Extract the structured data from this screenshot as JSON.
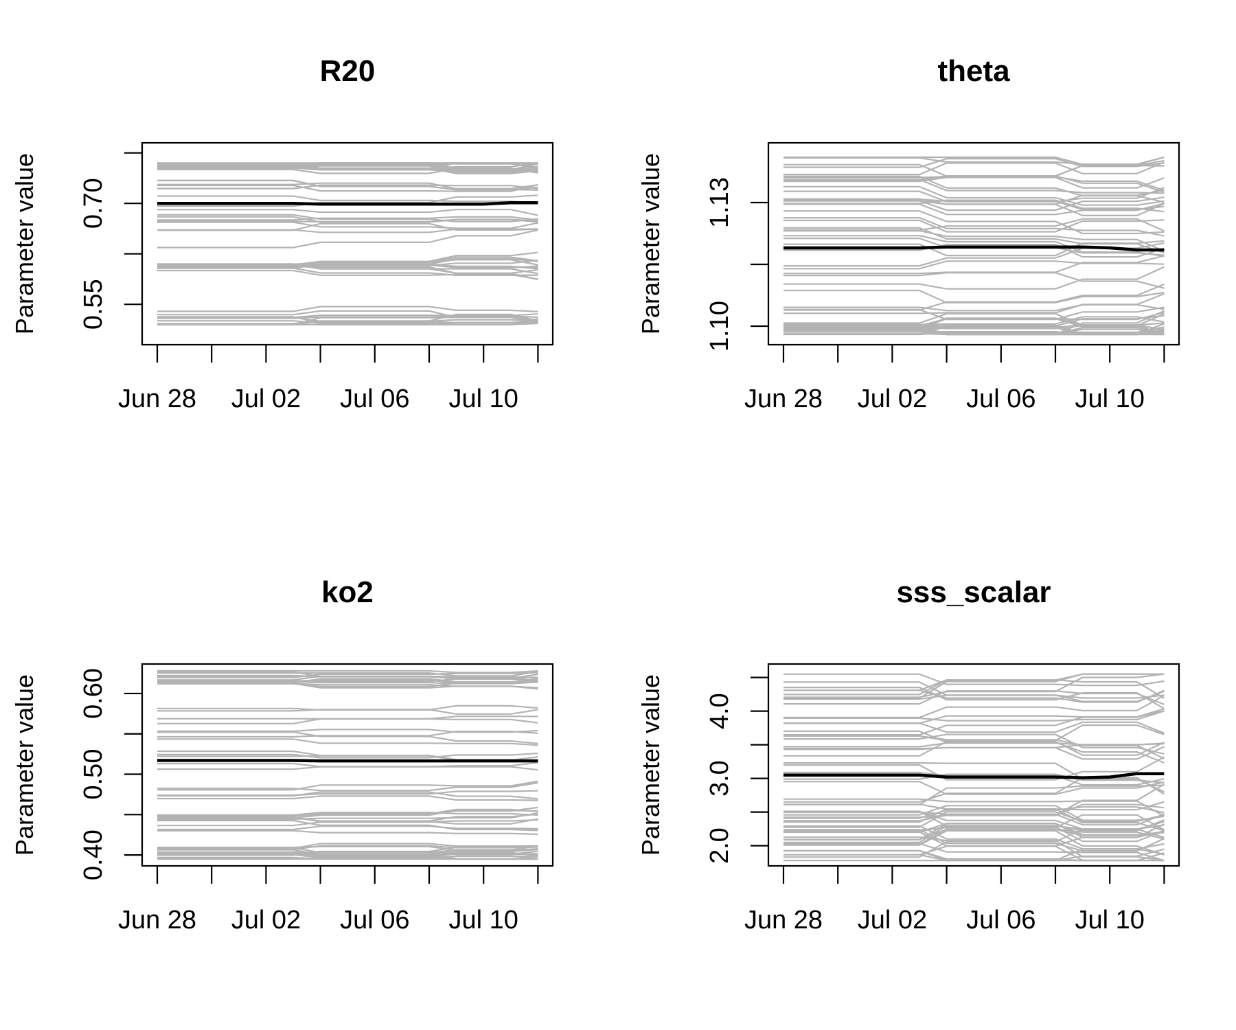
{
  "chart_data": [
    {
      "type": "line",
      "title": "R20",
      "xlabel": "",
      "ylabel": "Parameter value",
      "x": [
        "Jun 28",
        "Jun 29",
        "Jun 30",
        "Jul 01",
        "Jul 02",
        "Jul 03",
        "Jul 04",
        "Jul 05",
        "Jul 06",
        "Jul 07",
        "Jul 08",
        "Jul 09",
        "Jul 10",
        "Jul 11",
        "Jul 12"
      ],
      "x_ticks": [
        "Jun 28",
        "Jul 02",
        "Jul 06",
        "Jul 10"
      ],
      "y_ticks": [
        "0.55",
        "0.70"
      ],
      "ylim": [
        0.49,
        0.79
      ],
      "update_days": [
        "Jul 03",
        "Jul 04",
        "Jul 08",
        "Jul 09",
        "Jul 11",
        "Jul 12"
      ],
      "ensemble": {
        "color": "#b3b3b3",
        "members": 60,
        "low": 0.52,
        "high": 0.76,
        "clusters": [
          [
            0.52,
            0.54
          ],
          [
            0.6,
            0.61
          ],
          [
            0.63,
            0.74
          ],
          [
            0.75,
            0.76
          ]
        ],
        "spread": 0.01,
        "seed": 11
      },
      "mean": {
        "color": "#000000",
        "values": [
          0.7,
          0.7,
          0.7,
          0.7,
          0.7,
          0.7,
          0.699,
          0.699,
          0.699,
          0.699,
          0.699,
          0.699,
          0.699,
          0.701,
          0.701
        ]
      }
    },
    {
      "type": "line",
      "title": "theta",
      "xlabel": "",
      "ylabel": "Parameter value",
      "x": [
        "Jun 28",
        "Jun 29",
        "Jun 30",
        "Jul 01",
        "Jul 02",
        "Jul 03",
        "Jul 04",
        "Jul 05",
        "Jul 06",
        "Jul 07",
        "Jul 08",
        "Jul 09",
        "Jul 10",
        "Jul 11",
        "Jul 12"
      ],
      "x_ticks": [
        "Jun 28",
        "Jul 02",
        "Jul 06",
        "Jul 10"
      ],
      "y_ticks": [
        "1.10",
        "1.13"
      ],
      "ylim": [
        1.0955,
        1.1445
      ],
      "update_days": [
        "Jul 03",
        "Jul 04",
        "Jul 08",
        "Jul 09",
        "Jul 11",
        "Jul 12"
      ],
      "ensemble": {
        "color": "#b3b3b3",
        "members": 60,
        "low": 1.098,
        "high": 1.141,
        "clusters": [
          [
            1.098,
            1.101
          ],
          [
            1.102,
            1.128
          ],
          [
            1.129,
            1.141
          ]
        ],
        "spread": 0.003,
        "seed": 23
      },
      "mean": {
        "color": "#000000",
        "values": [
          1.119,
          1.119,
          1.119,
          1.119,
          1.119,
          1.119,
          1.1192,
          1.1192,
          1.1192,
          1.1192,
          1.1192,
          1.1192,
          1.119,
          1.1185,
          1.1185
        ]
      }
    },
    {
      "type": "line",
      "title": "ko2",
      "xlabel": "",
      "ylabel": "Parameter value",
      "x": [
        "Jun 28",
        "Jun 29",
        "Jun 30",
        "Jul 01",
        "Jul 02",
        "Jul 03",
        "Jul 04",
        "Jul 05",
        "Jul 06",
        "Jul 07",
        "Jul 08",
        "Jul 09",
        "Jul 10",
        "Jul 11",
        "Jul 12"
      ],
      "x_ticks": [
        "Jun 28",
        "Jul 02",
        "Jul 06",
        "Jul 10"
      ],
      "y_ticks": [
        "0.40",
        "0.50",
        "0.60"
      ],
      "ylim": [
        0.3865,
        0.6365
      ],
      "update_days": [
        "Jul 03",
        "Jul 04",
        "Jul 08",
        "Jul 09",
        "Jul 11",
        "Jul 12"
      ],
      "ensemble": {
        "color": "#b3b3b3",
        "members": 60,
        "low": 0.395,
        "high": 0.628,
        "clusters": [
          [
            0.395,
            0.41
          ],
          [
            0.43,
            0.45
          ],
          [
            0.46,
            0.59
          ],
          [
            0.61,
            0.628
          ]
        ],
        "spread": 0.006,
        "seed": 37
      },
      "mean": {
        "color": "#000000",
        "values": [
          0.517,
          0.517,
          0.517,
          0.517,
          0.517,
          0.517,
          0.5165,
          0.5165,
          0.5165,
          0.5165,
          0.5165,
          0.5165,
          0.5165,
          0.5165,
          0.5165
        ]
      }
    },
    {
      "type": "line",
      "title": "sss_scalar",
      "xlabel": "",
      "ylabel": "Parameter value",
      "x": [
        "Jun 28",
        "Jun 29",
        "Jun 30",
        "Jul 01",
        "Jul 02",
        "Jul 03",
        "Jul 04",
        "Jul 05",
        "Jul 06",
        "Jul 07",
        "Jul 08",
        "Jul 09",
        "Jul 10",
        "Jul 11",
        "Jul 12"
      ],
      "x_ticks": [
        "Jun 28",
        "Jul 02",
        "Jul 06",
        "Jul 10"
      ],
      "y_ticks": [
        "2.0",
        "3.0",
        "4.0"
      ],
      "ylim": [
        1.7,
        4.7
      ],
      "update_days": [
        "Jul 03",
        "Jul 04",
        "Jul 08",
        "Jul 09",
        "Jul 11",
        "Jul 12"
      ],
      "ensemble": {
        "color": "#b3b3b3",
        "members": 60,
        "low": 1.78,
        "high": 4.55,
        "clusters": [
          [
            1.78,
            2.4
          ],
          [
            2.4,
            3.6
          ],
          [
            3.6,
            4.55
          ]
        ],
        "spread": 0.25,
        "seed": 53
      },
      "mean": {
        "color": "#000000",
        "values": [
          3.05,
          3.05,
          3.05,
          3.05,
          3.05,
          3.05,
          3.02,
          3.02,
          3.02,
          3.02,
          3.02,
          3.01,
          3.02,
          3.07,
          3.07
        ]
      }
    }
  ]
}
